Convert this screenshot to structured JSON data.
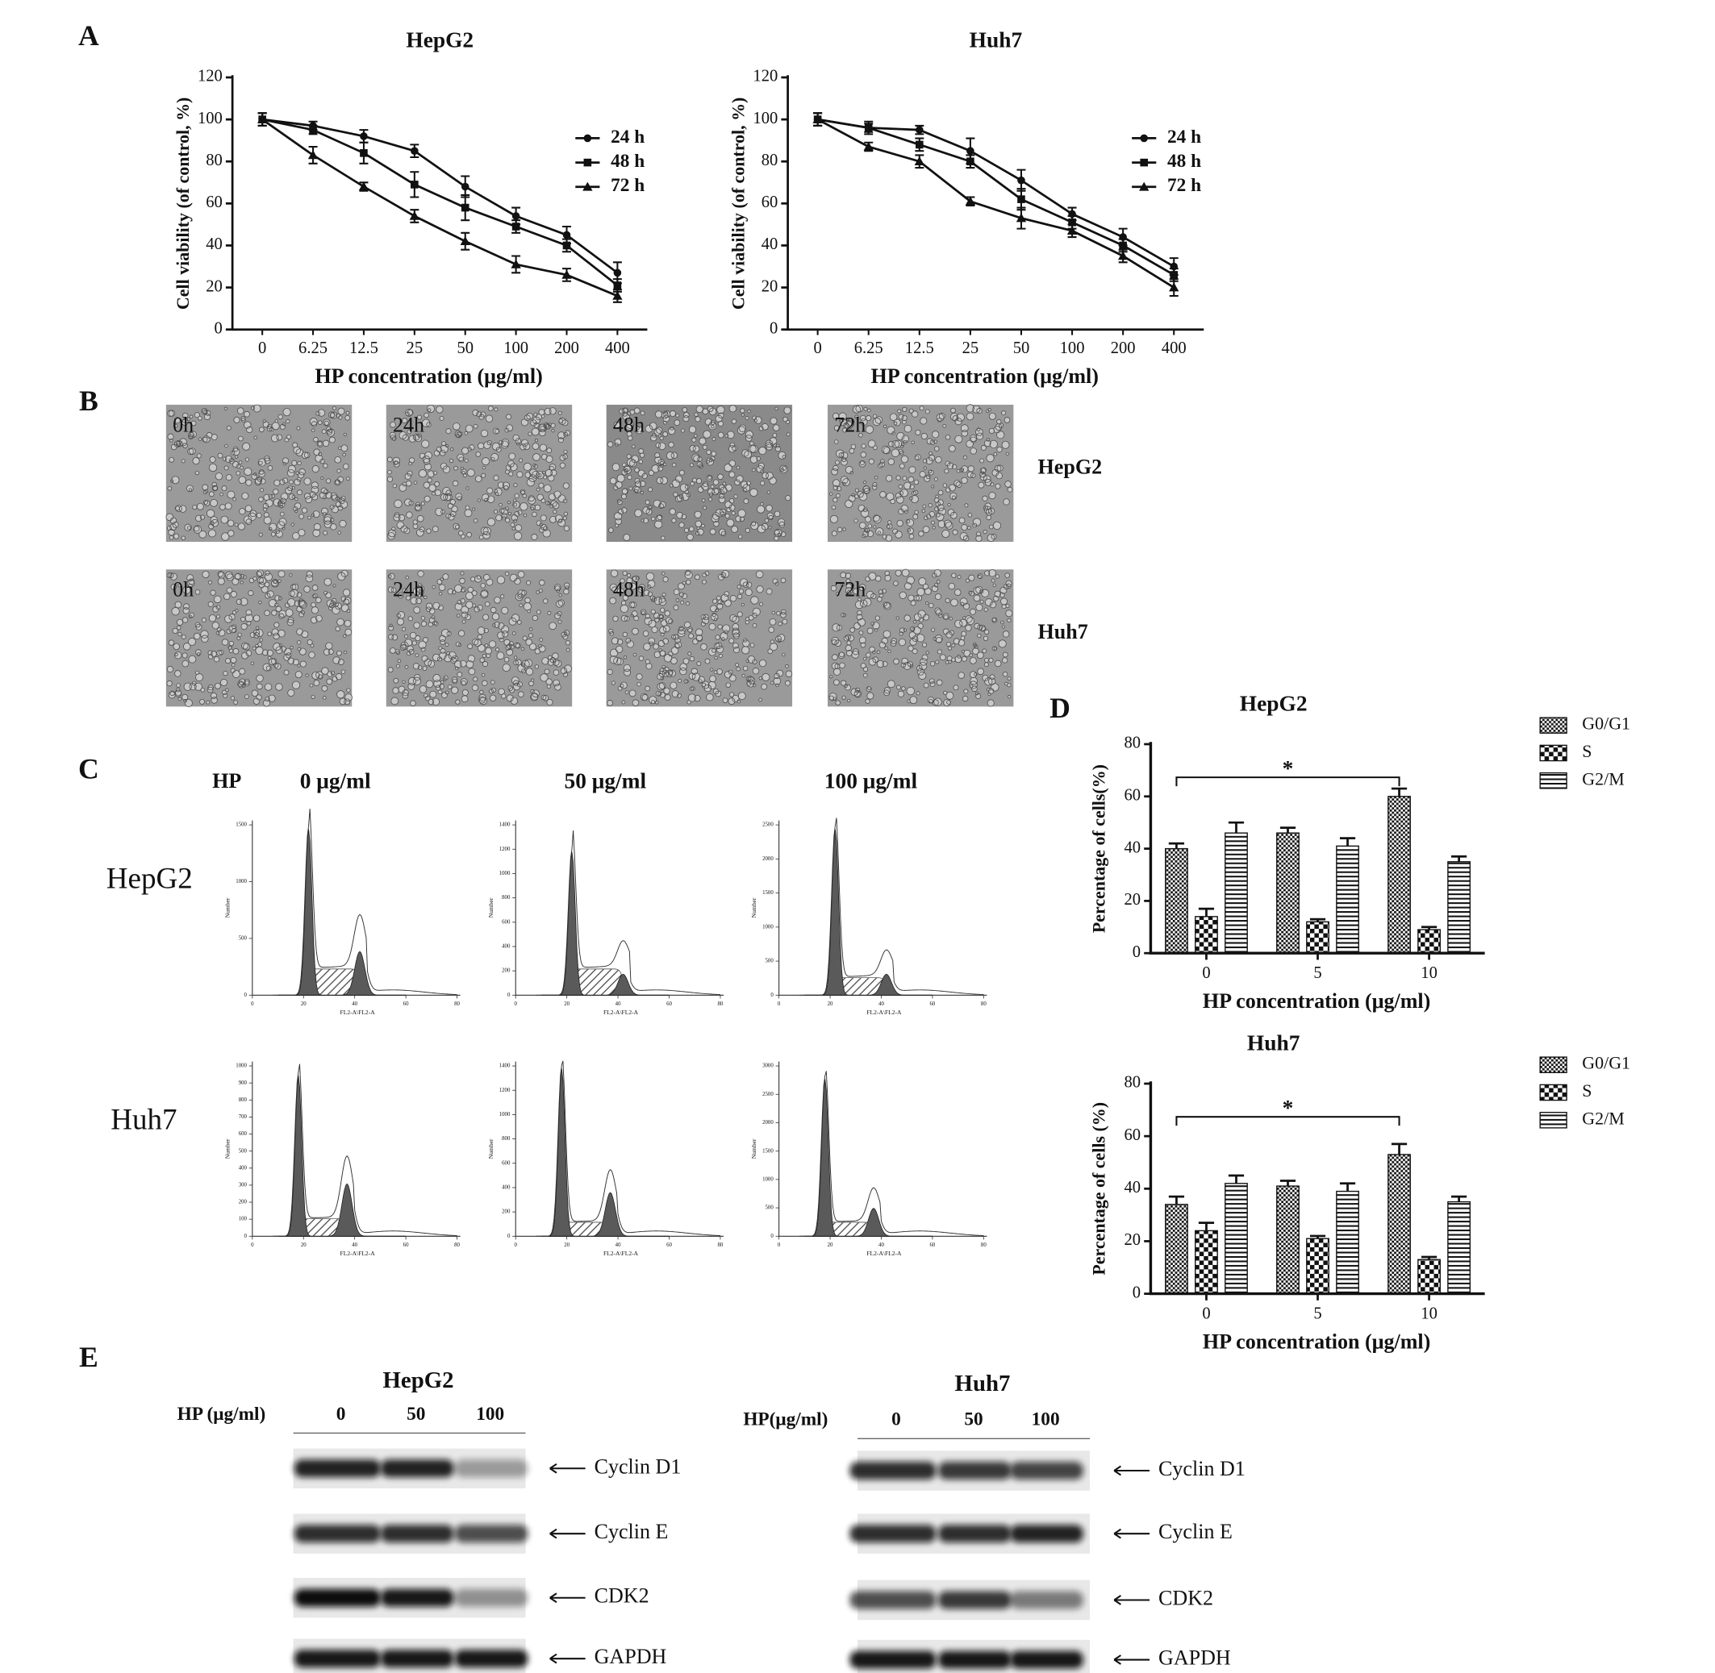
{
  "panel_labels": [
    "A",
    "B",
    "C",
    "D",
    "E"
  ],
  "chart_data": [
    {
      "type": "line",
      "title": "HepG2",
      "x_label": "HP concentration (μg/ml)",
      "y_label": "Cell viability (of control, %)",
      "categories": [
        "0",
        "6.25",
        "12.5",
        "25",
        "50",
        "100",
        "200",
        "400"
      ],
      "ylim": [
        0,
        120
      ],
      "yticks": [
        0,
        20,
        40,
        60,
        80,
        100,
        120
      ],
      "series": [
        {
          "name": "24 h",
          "marker": "circle",
          "color": "#111111",
          "values": [
            100,
            97,
            92,
            85,
            68,
            54,
            45,
            27
          ],
          "errors": [
            3,
            2,
            3,
            3,
            5,
            4,
            4,
            5
          ]
        },
        {
          "name": "48 h",
          "marker": "square",
          "color": "#111111",
          "values": [
            100,
            95,
            84,
            69,
            58,
            49,
            40,
            21
          ],
          "errors": [
            3,
            2,
            5,
            6,
            6,
            3,
            3,
            3
          ]
        },
        {
          "name": "72 h",
          "marker": "triangle",
          "color": "#111111",
          "values": [
            100,
            83,
            68,
            54,
            42,
            31,
            26,
            16
          ],
          "errors": [
            3,
            4,
            2,
            3,
            4,
            4,
            3,
            3
          ]
        }
      ]
    },
    {
      "type": "line",
      "title": "Huh7",
      "x_label": "HP concentration (μg/ml)",
      "y_label": "Cell viability (of control, %)",
      "categories": [
        "0",
        "6.25",
        "12.5",
        "25",
        "50",
        "100",
        "200",
        "400"
      ],
      "ylim": [
        0,
        120
      ],
      "yticks": [
        0,
        20,
        40,
        60,
        80,
        100,
        120
      ],
      "series": [
        {
          "name": "24 h",
          "marker": "circle",
          "color": "#111111",
          "values": [
            100,
            96,
            95,
            85,
            71,
            55,
            44,
            30
          ],
          "errors": [
            3,
            3,
            2,
            6,
            5,
            3,
            4,
            4
          ]
        },
        {
          "name": "48 h",
          "marker": "square",
          "color": "#111111",
          "values": [
            100,
            96,
            88,
            80,
            62,
            51,
            40,
            26
          ],
          "errors": [
            3,
            2,
            3,
            3,
            5,
            3,
            3,
            3
          ]
        },
        {
          "name": "72 h",
          "marker": "triangle",
          "color": "#111111",
          "values": [
            100,
            87,
            80,
            61,
            53,
            47,
            35,
            20
          ],
          "errors": [
            3,
            2,
            3,
            2,
            5,
            3,
            3,
            4
          ]
        }
      ]
    },
    {
      "type": "bar",
      "title": "HepG2",
      "x_label": "HP concentration (μg/ml)",
      "y_label": "Percentage of cells(%)",
      "annotation": "*",
      "categories": [
        "0",
        "5",
        "10"
      ],
      "ylim": [
        0,
        80
      ],
      "yticks": [
        0,
        20,
        40,
        60,
        80
      ],
      "series": [
        {
          "name": "G0/G1",
          "pattern": "fine-checker",
          "values": [
            40,
            46,
            60
          ],
          "errors": [
            2,
            2,
            3
          ]
        },
        {
          "name": "S",
          "pattern": "checker",
          "values": [
            14,
            12,
            9
          ],
          "errors": [
            3,
            1,
            1
          ]
        },
        {
          "name": "G2/M",
          "pattern": "stripes",
          "values": [
            46,
            41,
            35
          ],
          "errors": [
            4,
            3,
            2
          ]
        }
      ]
    },
    {
      "type": "bar",
      "title": "Huh7",
      "x_label": "HP concentration (μg/ml)",
      "y_label": "Percentage of cells (%)",
      "annotation": "*",
      "categories": [
        "0",
        "5",
        "10"
      ],
      "ylim": [
        0,
        80
      ],
      "yticks": [
        0,
        20,
        40,
        60,
        80
      ],
      "series": [
        {
          "name": "G0/G1",
          "pattern": "fine-checker",
          "values": [
            34,
            41,
            53
          ],
          "errors": [
            3,
            2,
            4
          ]
        },
        {
          "name": "S",
          "pattern": "checker",
          "values": [
            24,
            21,
            13
          ],
          "errors": [
            3,
            1,
            1
          ]
        },
        {
          "name": "G2/M",
          "pattern": "stripes",
          "values": [
            42,
            39,
            35
          ],
          "errors": [
            3,
            3,
            2
          ]
        }
      ]
    }
  ],
  "micrographs": {
    "columns": [
      "0h",
      "24h",
      "48h",
      "72h"
    ],
    "rows": [
      "HepG2",
      "Huh7"
    ]
  },
  "cell_cycle": {
    "hp_label": "HP",
    "doses": [
      "0  μg/ml",
      "50  μg/ml",
      "100  μg/ml"
    ],
    "rows": [
      "HepG2",
      "Huh7"
    ],
    "x_label": "FL2-A\\FL2-A",
    "y_label": "Number",
    "xticks": [
      0,
      20,
      40,
      60,
      80
    ],
    "histograms": [
      {
        "yticks": [
          0,
          500,
          1000,
          1500
        ]
      },
      {
        "yticks": [
          0,
          200,
          400,
          600,
          800,
          1000,
          1200,
          1400
        ]
      },
      {
        "yticks": [
          0,
          500,
          1000,
          1500,
          2000,
          2500
        ]
      },
      {
        "yticks": [
          0,
          100,
          200,
          300,
          400,
          500,
          600,
          700,
          800,
          900,
          1000
        ]
      },
      {
        "yticks": [
          0,
          200,
          400,
          600,
          800,
          1000,
          1200,
          1400
        ]
      },
      {
        "yticks": [
          0,
          500,
          1000,
          1500,
          2000,
          2500,
          3000
        ]
      }
    ]
  },
  "western_blot": [
    {
      "title": "HepG2",
      "hp_label": "HP (μg/ml)",
      "lanes": [
        "0",
        "50",
        "100"
      ],
      "proteins": [
        "Cyclin D1",
        "Cyclin E",
        "CDK2",
        "GAPDH"
      ]
    },
    {
      "title": "Huh7",
      "hp_label": "HP(μg/ml)",
      "lanes": [
        "0",
        "50",
        "100"
      ],
      "proteins": [
        "Cyclin  D1",
        "Cyclin E",
        "CDK2",
        "GAPDH"
      ]
    }
  ]
}
